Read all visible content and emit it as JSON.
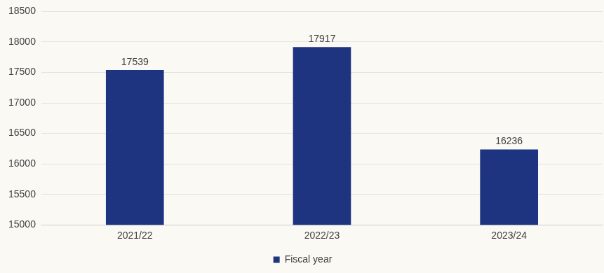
{
  "chart_data": {
    "type": "bar",
    "categories": [
      "2021/22",
      "2022/23",
      "2023/24"
    ],
    "series": [
      {
        "name": "Fiscal year",
        "color": "#1f3480",
        "values": [
          17539,
          17917,
          16236
        ]
      }
    ],
    "ylim": [
      15000,
      18500
    ],
    "yticks": [
      15000,
      15500,
      16000,
      16500,
      17000,
      17500,
      18000,
      18500
    ],
    "grid": true,
    "legend": "bottom",
    "data_labels": true
  }
}
